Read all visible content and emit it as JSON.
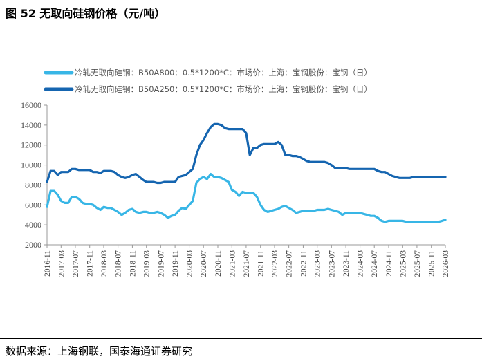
{
  "header": {
    "title": "图 52 无取向硅钢价格（元/吨）"
  },
  "footer": {
    "source": "数据来源：上海钢联，国泰海通证券研究"
  },
  "colors": {
    "series_b50a800": "#38b6e6",
    "series_b50a250": "#1565b0"
  },
  "chart_data": {
    "type": "line",
    "title": "",
    "xlabel": "",
    "ylabel": "",
    "ylim": [
      2000,
      16000
    ],
    "grid": false,
    "legend_position": "top",
    "y_ticks": [
      "16000",
      "14000",
      "12000",
      "10000",
      "8000",
      "6000",
      "4000",
      "2000"
    ],
    "x_ticks": [
      "2016-11",
      "2017-03",
      "2017-07",
      "2017-11",
      "2018-03",
      "2018-07",
      "2018-11",
      "2019-03",
      "2019-07",
      "2019-11",
      "2020-03",
      "2020-07",
      "2020-11",
      "2021-03",
      "2021-07",
      "2021-11",
      "2022-03",
      "2022-07",
      "2022-11",
      "2023-03",
      "2023-07",
      "2023-11",
      "2024-03",
      "2024-07",
      "2024-11",
      "2025-03",
      "2025-07",
      "2025-11",
      "2026-03"
    ],
    "series": [
      {
        "name": "冷轧无取向硅钢：B50A800：0.5*1200*C：市场价：上海：宝钢股份：宝钢（日）",
        "points": [
          [
            "2016-11",
            5800
          ],
          [
            "2016-12",
            7400
          ],
          [
            "2017-01",
            7400
          ],
          [
            "2017-02",
            7000
          ],
          [
            "2017-03",
            6400
          ],
          [
            "2017-04",
            6200
          ],
          [
            "2017-05",
            6200
          ],
          [
            "2017-06",
            6800
          ],
          [
            "2017-07",
            6800
          ],
          [
            "2017-08",
            6600
          ],
          [
            "2017-09",
            6200
          ],
          [
            "2017-10",
            6100
          ],
          [
            "2017-11",
            6100
          ],
          [
            "2017-12",
            6000
          ],
          [
            "2018-01",
            5700
          ],
          [
            "2018-02",
            5500
          ],
          [
            "2018-03",
            5800
          ],
          [
            "2018-04",
            5700
          ],
          [
            "2018-05",
            5700
          ],
          [
            "2018-06",
            5500
          ],
          [
            "2018-07",
            5300
          ],
          [
            "2018-08",
            5000
          ],
          [
            "2018-09",
            5200
          ],
          [
            "2018-10",
            5500
          ],
          [
            "2018-11",
            5600
          ],
          [
            "2018-12",
            5300
          ],
          [
            "2019-01",
            5200
          ],
          [
            "2019-02",
            5300
          ],
          [
            "2019-03",
            5300
          ],
          [
            "2019-04",
            5200
          ],
          [
            "2019-05",
            5200
          ],
          [
            "2019-06",
            5300
          ],
          [
            "2019-07",
            5200
          ],
          [
            "2019-08",
            5000
          ],
          [
            "2019-09",
            4700
          ],
          [
            "2019-10",
            4900
          ],
          [
            "2019-11",
            5000
          ],
          [
            "2019-12",
            5400
          ],
          [
            "2020-01",
            5700
          ],
          [
            "2020-02",
            5600
          ],
          [
            "2020-03",
            6000
          ],
          [
            "2020-04",
            6400
          ],
          [
            "2020-05",
            8200
          ],
          [
            "2020-06",
            8600
          ],
          [
            "2020-07",
            8800
          ],
          [
            "2020-08",
            8600
          ],
          [
            "2020-09",
            9100
          ],
          [
            "2020-10",
            8800
          ],
          [
            "2020-11",
            8800
          ],
          [
            "2020-12",
            8700
          ],
          [
            "2021-01",
            8500
          ],
          [
            "2021-02",
            8300
          ],
          [
            "2021-03",
            7500
          ],
          [
            "2021-04",
            7300
          ],
          [
            "2021-05",
            6900
          ],
          [
            "2021-06",
            7300
          ],
          [
            "2021-07",
            7200
          ],
          [
            "2021-08",
            7200
          ],
          [
            "2021-09",
            7200
          ],
          [
            "2021-10",
            6800
          ],
          [
            "2021-11",
            6000
          ],
          [
            "2021-12",
            5500
          ],
          [
            "2022-01",
            5300
          ],
          [
            "2022-02",
            5400
          ],
          [
            "2022-03",
            5500
          ],
          [
            "2022-04",
            5600
          ],
          [
            "2022-05",
            5800
          ],
          [
            "2022-06",
            5900
          ],
          [
            "2022-07",
            5700
          ],
          [
            "2022-08",
            5500
          ],
          [
            "2022-09",
            5200
          ],
          [
            "2022-10",
            5300
          ],
          [
            "2022-11",
            5400
          ],
          [
            "2022-12",
            5400
          ],
          [
            "2023-01",
            5400
          ],
          [
            "2023-02",
            5400
          ],
          [
            "2023-03",
            5500
          ],
          [
            "2023-04",
            5500
          ],
          [
            "2023-05",
            5500
          ],
          [
            "2023-06",
            5600
          ],
          [
            "2023-07",
            5500
          ],
          [
            "2023-08",
            5400
          ],
          [
            "2023-09",
            5300
          ],
          [
            "2023-10",
            5000
          ],
          [
            "2023-11",
            5200
          ],
          [
            "2023-12",
            5200
          ],
          [
            "2024-01",
            5200
          ],
          [
            "2024-02",
            5200
          ],
          [
            "2024-03",
            5200
          ],
          [
            "2024-04",
            5100
          ],
          [
            "2024-05",
            5000
          ],
          [
            "2024-06",
            4900
          ],
          [
            "2024-07",
            4900
          ],
          [
            "2024-08",
            4700
          ],
          [
            "2024-09",
            4400
          ],
          [
            "2024-10",
            4300
          ],
          [
            "2024-11",
            4400
          ],
          [
            "2024-12",
            4400
          ],
          [
            "2025-01",
            4400
          ],
          [
            "2025-02",
            4400
          ],
          [
            "2025-03",
            4400
          ],
          [
            "2025-04",
            4300
          ],
          [
            "2025-05",
            4300
          ],
          [
            "2025-06",
            4300
          ],
          [
            "2025-07",
            4300
          ],
          [
            "2025-08",
            4300
          ],
          [
            "2025-09",
            4300
          ],
          [
            "2025-10",
            4300
          ],
          [
            "2025-11",
            4300
          ],
          [
            "2025-12",
            4300
          ],
          [
            "2026-01",
            4300
          ],
          [
            "2026-02",
            4400
          ],
          [
            "2026-03",
            4500
          ]
        ]
      },
      {
        "name": "冷轧无取向硅钢：B50A250：0.5*1200*C：市场价：上海：宝钢股份：宝钢（日）",
        "points": [
          [
            "2016-11",
            8300
          ],
          [
            "2016-12",
            9400
          ],
          [
            "2017-01",
            9400
          ],
          [
            "2017-02",
            9000
          ],
          [
            "2017-03",
            9300
          ],
          [
            "2017-04",
            9300
          ],
          [
            "2017-05",
            9300
          ],
          [
            "2017-06",
            9600
          ],
          [
            "2017-07",
            9600
          ],
          [
            "2017-08",
            9500
          ],
          [
            "2017-09",
            9500
          ],
          [
            "2017-10",
            9500
          ],
          [
            "2017-11",
            9500
          ],
          [
            "2017-12",
            9300
          ],
          [
            "2018-01",
            9300
          ],
          [
            "2018-02",
            9200
          ],
          [
            "2018-03",
            9400
          ],
          [
            "2018-04",
            9400
          ],
          [
            "2018-05",
            9400
          ],
          [
            "2018-06",
            9300
          ],
          [
            "2018-07",
            9000
          ],
          [
            "2018-08",
            8800
          ],
          [
            "2018-09",
            8700
          ],
          [
            "2018-10",
            8800
          ],
          [
            "2018-11",
            9000
          ],
          [
            "2018-12",
            9100
          ],
          [
            "2019-01",
            8800
          ],
          [
            "2019-02",
            8500
          ],
          [
            "2019-03",
            8300
          ],
          [
            "2019-04",
            8300
          ],
          [
            "2019-05",
            8300
          ],
          [
            "2019-06",
            8200
          ],
          [
            "2019-07",
            8200
          ],
          [
            "2019-08",
            8300
          ],
          [
            "2019-09",
            8300
          ],
          [
            "2019-10",
            8300
          ],
          [
            "2019-11",
            8300
          ],
          [
            "2019-12",
            8800
          ],
          [
            "2020-01",
            8900
          ],
          [
            "2020-02",
            9000
          ],
          [
            "2020-03",
            9300
          ],
          [
            "2020-04",
            9600
          ],
          [
            "2020-05",
            11000
          ],
          [
            "2020-06",
            12000
          ],
          [
            "2020-07",
            12500
          ],
          [
            "2020-08",
            13200
          ],
          [
            "2020-09",
            13800
          ],
          [
            "2020-10",
            14100
          ],
          [
            "2020-11",
            14100
          ],
          [
            "2020-12",
            14000
          ],
          [
            "2021-01",
            13700
          ],
          [
            "2021-02",
            13600
          ],
          [
            "2021-03",
            13600
          ],
          [
            "2021-04",
            13600
          ],
          [
            "2021-05",
            13600
          ],
          [
            "2021-06",
            13600
          ],
          [
            "2021-07",
            13200
          ],
          [
            "2021-08",
            11000
          ],
          [
            "2021-09",
            11700
          ],
          [
            "2021-10",
            11700
          ],
          [
            "2021-11",
            12000
          ],
          [
            "2021-12",
            12100
          ],
          [
            "2022-01",
            12100
          ],
          [
            "2022-02",
            12100
          ],
          [
            "2022-03",
            12100
          ],
          [
            "2022-04",
            12300
          ],
          [
            "2022-05",
            12000
          ],
          [
            "2022-06",
            11000
          ],
          [
            "2022-07",
            11000
          ],
          [
            "2022-08",
            10900
          ],
          [
            "2022-09",
            10900
          ],
          [
            "2022-10",
            10800
          ],
          [
            "2022-11",
            10600
          ],
          [
            "2022-12",
            10400
          ],
          [
            "2023-01",
            10300
          ],
          [
            "2023-02",
            10300
          ],
          [
            "2023-03",
            10300
          ],
          [
            "2023-04",
            10300
          ],
          [
            "2023-05",
            10300
          ],
          [
            "2023-06",
            10200
          ],
          [
            "2023-07",
            10000
          ],
          [
            "2023-08",
            9700
          ],
          [
            "2023-09",
            9700
          ],
          [
            "2023-10",
            9700
          ],
          [
            "2023-11",
            9700
          ],
          [
            "2023-12",
            9600
          ],
          [
            "2024-01",
            9600
          ],
          [
            "2024-02",
            9600
          ],
          [
            "2024-03",
            9600
          ],
          [
            "2024-04",
            9600
          ],
          [
            "2024-05",
            9600
          ],
          [
            "2024-06",
            9600
          ],
          [
            "2024-07",
            9600
          ],
          [
            "2024-08",
            9400
          ],
          [
            "2024-09",
            9300
          ],
          [
            "2024-10",
            9300
          ],
          [
            "2024-11",
            9100
          ],
          [
            "2024-12",
            8900
          ],
          [
            "2025-01",
            8800
          ],
          [
            "2025-02",
            8700
          ],
          [
            "2025-03",
            8700
          ],
          [
            "2025-04",
            8700
          ],
          [
            "2025-05",
            8700
          ],
          [
            "2025-06",
            8800
          ],
          [
            "2025-07",
            8800
          ],
          [
            "2025-08",
            8800
          ],
          [
            "2025-09",
            8800
          ],
          [
            "2025-10",
            8800
          ],
          [
            "2025-11",
            8800
          ],
          [
            "2025-12",
            8800
          ],
          [
            "2026-01",
            8800
          ],
          [
            "2026-02",
            8800
          ],
          [
            "2026-03",
            8800
          ]
        ]
      }
    ]
  }
}
